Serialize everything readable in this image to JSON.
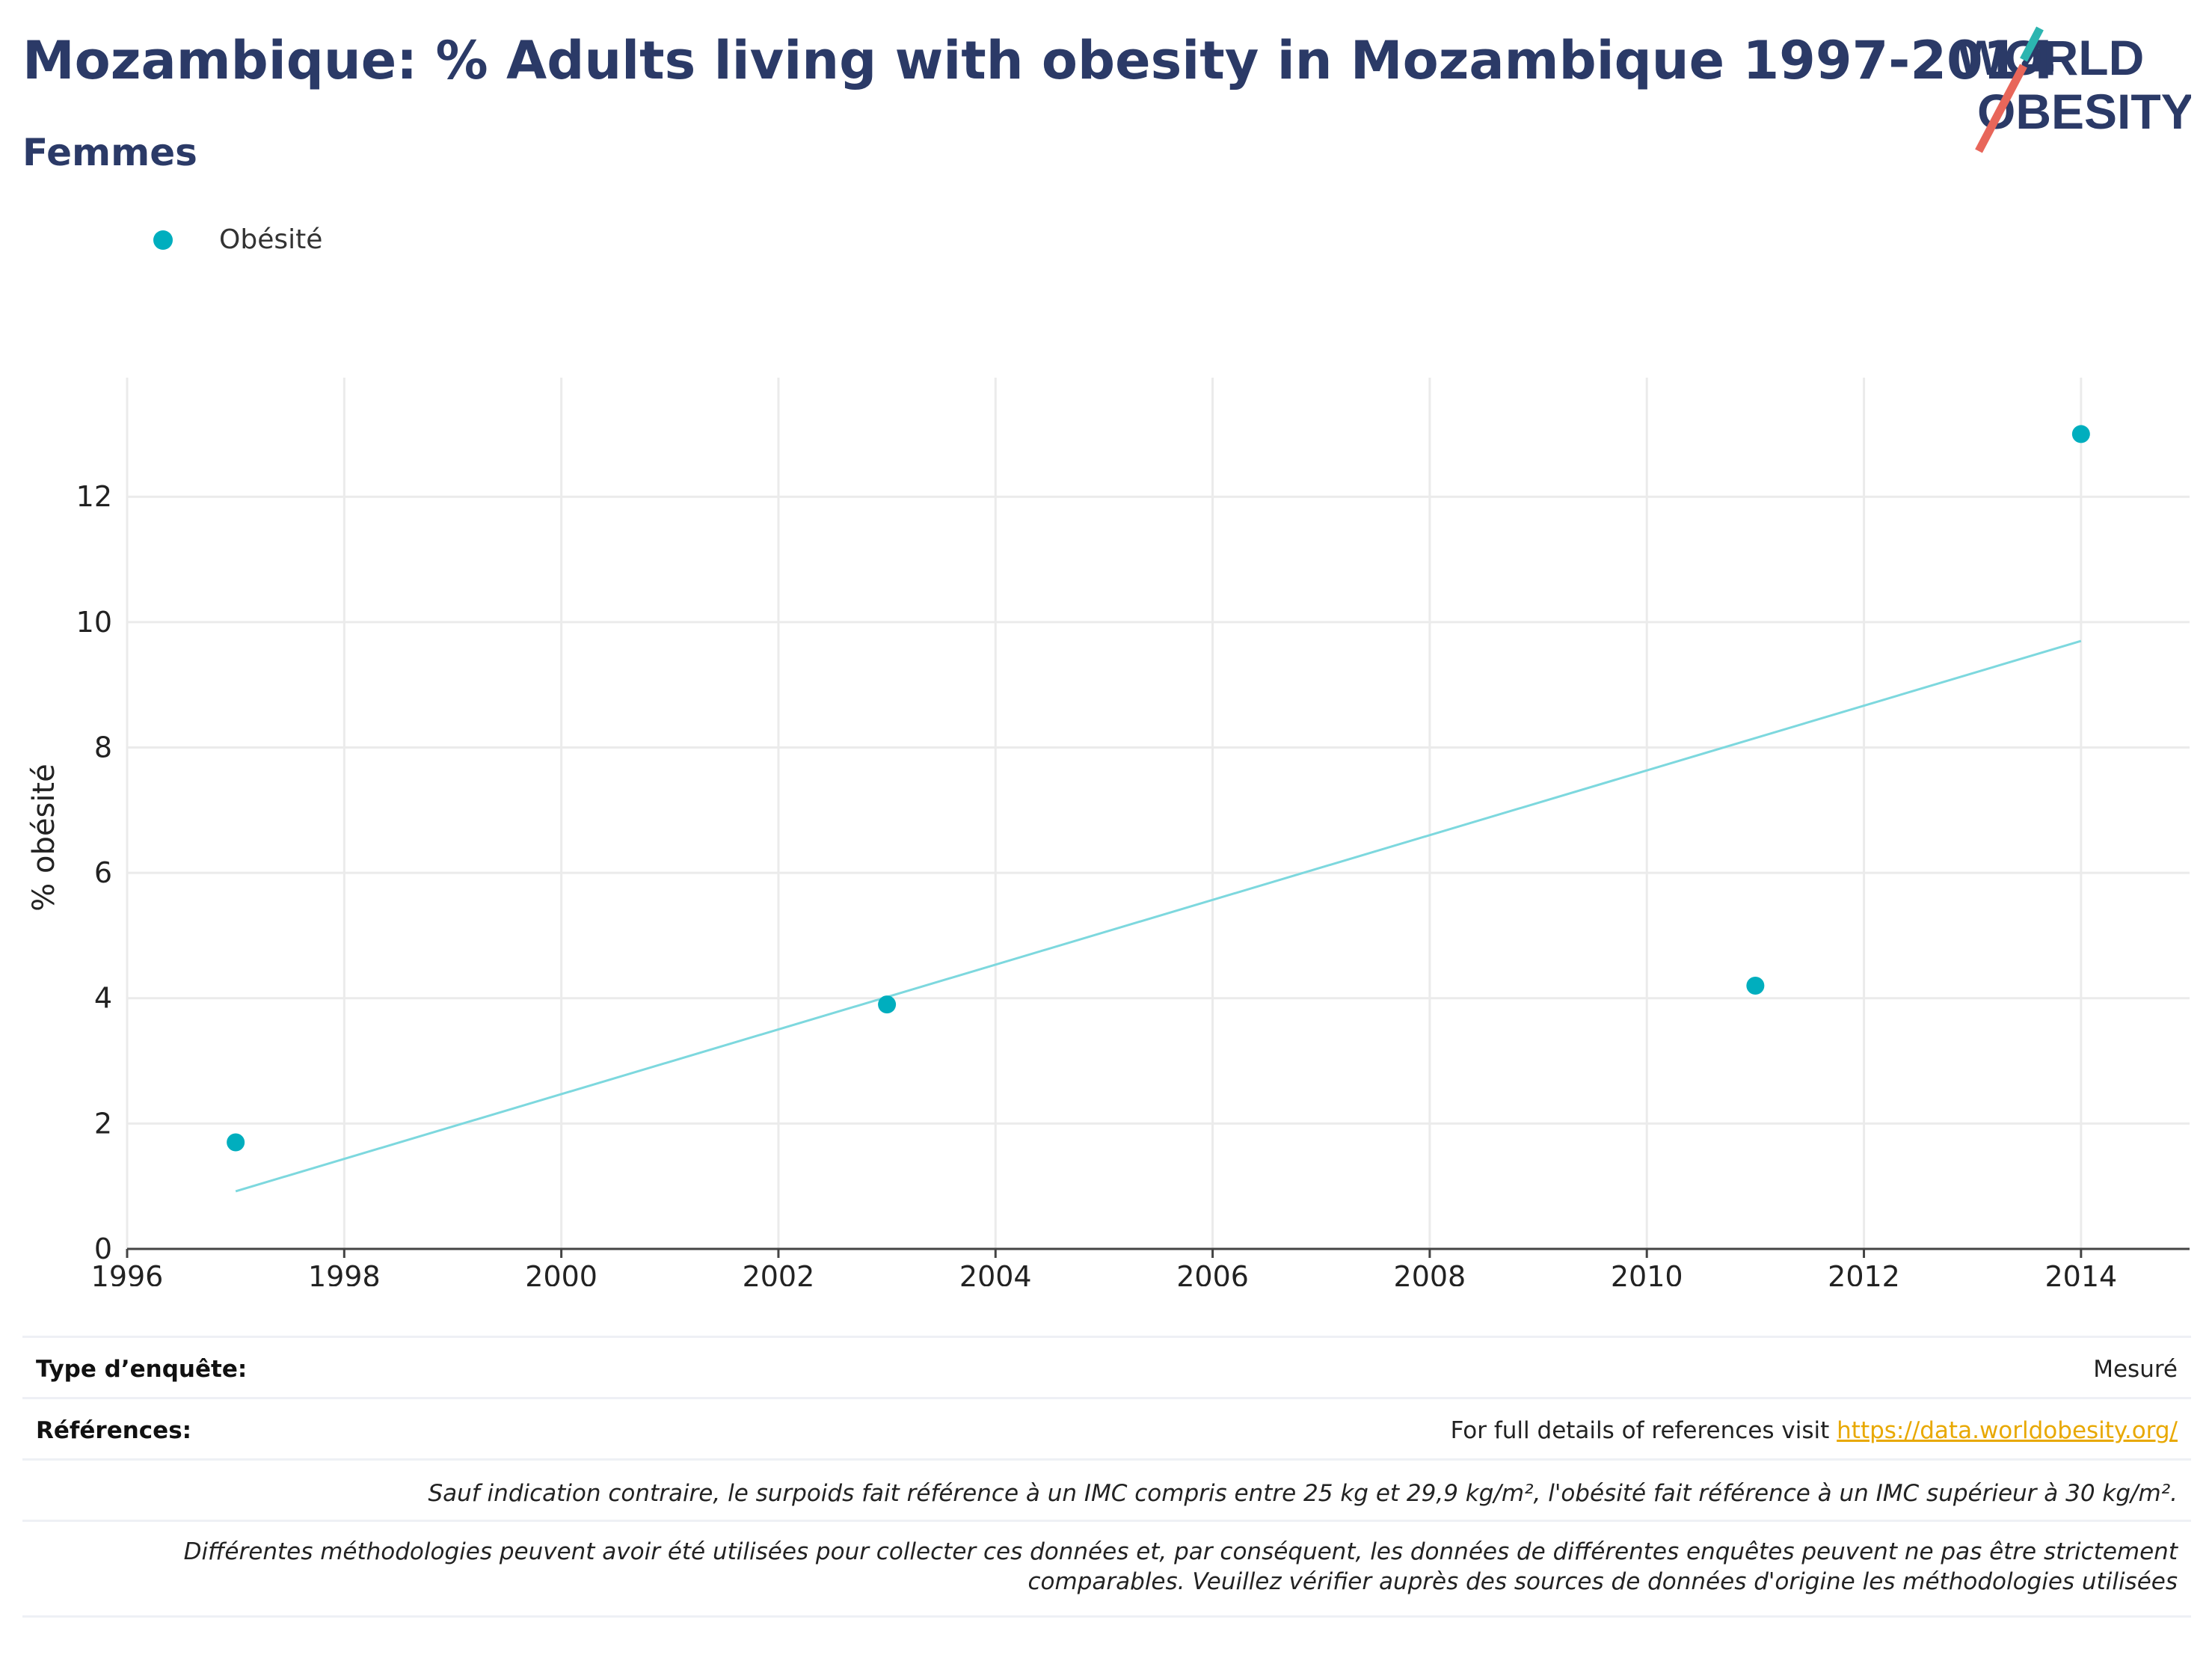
{
  "header": {
    "title": "Mozambique: % Adults living with obesity in Mozambique 1997-2014",
    "subtitle": "Femmes"
  },
  "logo": {
    "line1": "WORLD",
    "line2": "OBESITY",
    "accent_teal": "#2cb5b0",
    "accent_red": "#e8665a",
    "text_color": "#2b3a67"
  },
  "legend": {
    "label": "Obésité",
    "color": "#00aebe"
  },
  "chart_data": {
    "type": "scatter",
    "title": "",
    "xlabel": "",
    "ylabel": "% obésité",
    "xlim": [
      1996,
      2015
    ],
    "ylim": [
      0,
      13.9
    ],
    "xticks": [
      1996,
      1998,
      2000,
      2002,
      2004,
      2006,
      2008,
      2010,
      2012,
      2014
    ],
    "yticks": [
      0,
      2,
      4,
      6,
      8,
      10,
      12
    ],
    "grid": true,
    "series": [
      {
        "name": "Obésité",
        "color": "#00aebe",
        "points": [
          {
            "x": 1997,
            "y": 1.7
          },
          {
            "x": 2003,
            "y": 3.9
          },
          {
            "x": 2011,
            "y": 4.2
          },
          {
            "x": 2014,
            "y": 13.0
          }
        ]
      }
    ],
    "trendline": {
      "color": "#7dd8de",
      "points": [
        {
          "x": 1997,
          "y": 0.92
        },
        {
          "x": 2014,
          "y": 9.7
        }
      ]
    }
  },
  "footer": {
    "survey_type_label": "Type d’enquête:",
    "survey_type_value": "Mesuré",
    "references_label": "Références:",
    "references_text": "For full details of references visit ",
    "references_link": "https://data.worldobesity.org/",
    "note1": "Sauf indication contraire, le surpoids fait référence à un IMC compris entre 25 kg et 29,9 kg/m², l'obésité fait référence à un IMC supérieur à 30 kg/m².",
    "note2_line1": "Différentes méthodologies peuvent avoir été utilisées pour collecter ces données et, par conséquent, les données de différentes enquêtes peuvent ne pas être strictement",
    "note2_line2": "comparables. Veuillez vérifier auprès des sources de données d'origine les méthodologies utilisées"
  }
}
